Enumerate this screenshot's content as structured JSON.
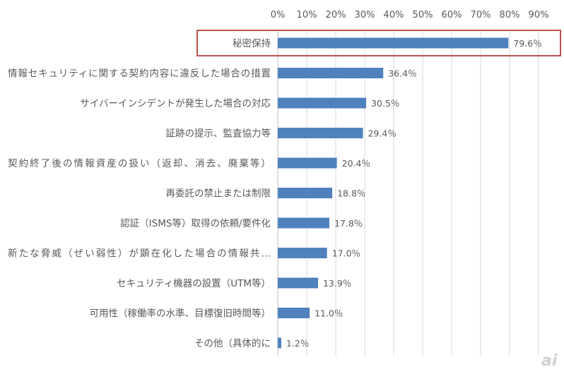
{
  "chart_data": {
    "type": "bar",
    "orientation": "horizontal",
    "categories": [
      "秘密保持",
      "情報セキュリティに関する契約内容に違反した場合の措置",
      "サイバーインシデントが発生した場合の対応",
      "証跡の提示、監査協力等",
      "契約終了後の情報資産の扱い（返却、消去、廃棄等）",
      "再委託の禁止または制限",
      "認証（ISMS等）取得の依頼/要件化",
      "新たな脅威（ぜい弱性）が顕在化した場合の情報共…",
      "セキュリティ機器の設置（UTM等）",
      "可用性（稼働率の水準、目標復旧時間等）",
      "その他（具体的に"
    ],
    "values": [
      79.6,
      36.4,
      30.5,
      29.4,
      20.4,
      18.8,
      17.8,
      17.0,
      13.9,
      11.0,
      1.2
    ],
    "data_labels": [
      "79.6％",
      "36.4％",
      "30.5％",
      "29.4％",
      "20.4％",
      "18.8％",
      "17.8％",
      "17.0％",
      "13.9％",
      "11.0％",
      "1.2％"
    ],
    "x_ticks": [
      "0%",
      "10%",
      "20%",
      "30%",
      "40%",
      "50%",
      "60%",
      "70%",
      "80%",
      "90%"
    ],
    "xlim": [
      0,
      90
    ],
    "axis_position": "top",
    "grid": true,
    "highlighted_category": "秘密保持",
    "colors": {
      "bar": "#4f81bd",
      "highlight_box": "#c0504d",
      "grid": "#d9d9d9"
    }
  },
  "watermark": "ai"
}
